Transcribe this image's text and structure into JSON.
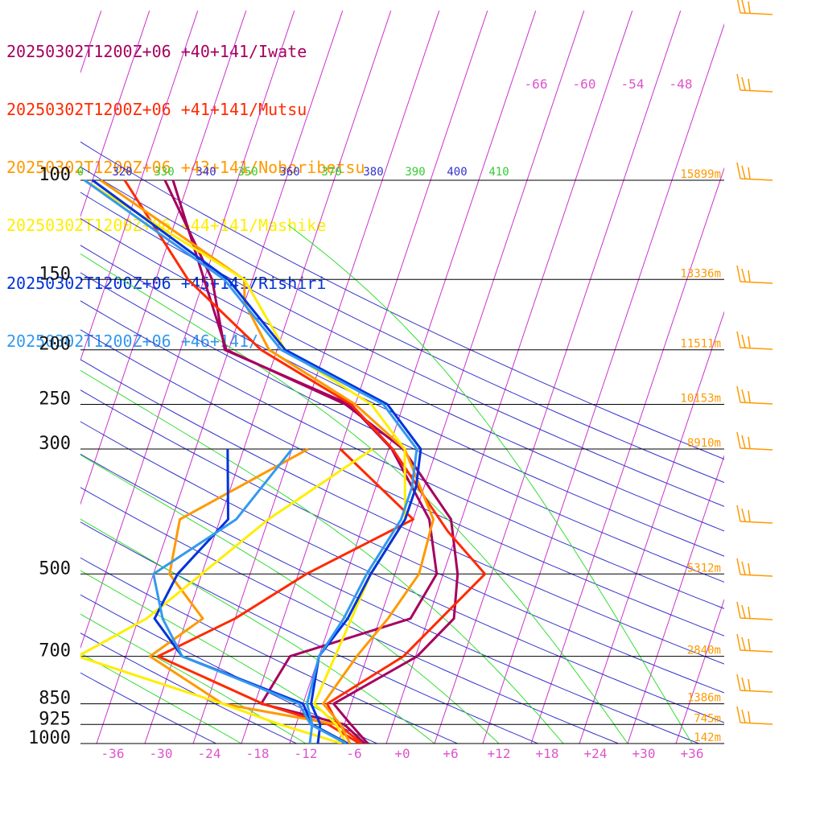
{
  "chart_data": {
    "type": "line",
    "title": "",
    "pressure_levels": [
      100,
      150,
      200,
      250,
      300,
      500,
      700,
      850,
      925,
      1000
    ],
    "pressure_labels": [
      "100",
      "150",
      "200",
      "250",
      "300",
      "500",
      "700",
      "850",
      "925",
      "1000"
    ],
    "height_labels": [
      {
        "p": 100,
        "text": "15899m"
      },
      {
        "p": 150,
        "text": "13336m"
      },
      {
        "p": 200,
        "text": "11511m"
      },
      {
        "p": 250,
        "text": "10153m"
      },
      {
        "p": 300,
        "text": "8910m"
      },
      {
        "p": 500,
        "text": "5312m"
      },
      {
        "p": 700,
        "text": "2840m"
      },
      {
        "p": 850,
        "text": "1386m"
      },
      {
        "p": 925,
        "text": "745m"
      },
      {
        "p": 1000,
        "text": "142m"
      }
    ],
    "temperature_ticks": [
      "-36",
      "-30",
      "-24",
      "-18",
      "-12",
      "-6",
      "+0",
      "+6",
      "+12",
      "+18",
      "+24",
      "+30",
      "+36"
    ],
    "temperature_tick_values": [
      -36,
      -30,
      -24,
      -18,
      -12,
      -6,
      0,
      6,
      12,
      18,
      24,
      30,
      36
    ],
    "upper_temperature_labels": [
      "-66",
      "-60",
      "-54",
      "-48"
    ],
    "theta_labels": [
      "0",
      "320",
      "330",
      "340",
      "350",
      "360",
      "370",
      "380",
      "390",
      "400",
      "410"
    ],
    "xlim": [
      -40,
      40
    ],
    "ylim": [
      1000,
      100
    ],
    "series": [
      {
        "name": "20250302T1200Z+06 +40+141/Iwate",
        "color": "#a6005f",
        "temperature": [
          [
            1000,
            -4.3
          ],
          [
            925,
            -7.2
          ],
          [
            850,
            -10.2
          ],
          [
            700,
            -1.8
          ],
          [
            600,
            1.2
          ],
          [
            500,
            -0.2
          ],
          [
            400,
            -3.3
          ],
          [
            300,
            -12.2
          ],
          [
            250,
            -21.2
          ],
          [
            200,
            -38.3
          ],
          [
            150,
            -44.0
          ],
          [
            100,
            -52.0
          ]
        ],
        "dewpoint": [
          [
            1000,
            -4.7
          ],
          [
            925,
            -8.0
          ],
          [
            850,
            -19.2
          ],
          [
            700,
            -17.6
          ],
          [
            600,
            -4.2
          ],
          [
            500,
            -2.8
          ],
          [
            400,
            -6.0
          ],
          [
            300,
            -13.6
          ],
          [
            250,
            -20.7
          ],
          [
            200,
            -38.5
          ],
          [
            150,
            -43.0
          ],
          [
            100,
            -53.0
          ]
        ]
      },
      {
        "name": "20250302T1200Z+06 +41+141/Mutsu",
        "color": "#ff2a00",
        "temperature": [
          [
            1000,
            -5.0
          ],
          [
            925,
            -8.8
          ],
          [
            850,
            -11.0
          ],
          [
            700,
            -3.5
          ],
          [
            500,
            3.2
          ],
          [
            420,
            -3.2
          ],
          [
            380,
            -6.3
          ],
          [
            300,
            -13.5
          ],
          [
            250,
            -20.5
          ],
          [
            200,
            -34.0
          ],
          [
            150,
            -46.0
          ],
          [
            100,
            -58.0
          ]
        ],
        "dewpoint": [
          [
            1000,
            -5.3
          ],
          [
            925,
            -10.0
          ],
          [
            850,
            -19.0
          ],
          [
            700,
            -34.0
          ],
          [
            600,
            -26.0
          ],
          [
            500,
            -19.0
          ],
          [
            400,
            -8.0
          ],
          [
            300,
            -20.0
          ]
        ]
      },
      {
        "name": "20250302T1200Z+06 +43+141/Noboribetsu",
        "color": "#ff9900",
        "temperature": [
          [
            1000,
            -6.5
          ],
          [
            925,
            -8.5
          ],
          [
            850,
            -11.5
          ],
          [
            700,
            -9.3
          ],
          [
            600,
            -7.0
          ],
          [
            500,
            -5.0
          ],
          [
            400,
            -5.5
          ],
          [
            300,
            -12.0
          ],
          [
            250,
            -20.0
          ],
          [
            200,
            -33.0
          ],
          [
            165,
            -38.0
          ],
          [
            150,
            -39.0
          ],
          [
            100,
            -61.0
          ]
        ],
        "dewpoint": [
          [
            1000,
            -7.0
          ],
          [
            925,
            -9.0
          ],
          [
            850,
            -24.0
          ],
          [
            700,
            -35.0
          ],
          [
            600,
            -30.0
          ],
          [
            500,
            -36.0
          ],
          [
            400,
            -37.0
          ],
          [
            300,
            -24.0
          ]
        ]
      },
      {
        "name": "20250302T1200Z+06 +44+141/Mashike",
        "color": "#ffee00",
        "temperature": [
          [
            1000,
            -7.0
          ],
          [
            925,
            -9.0
          ],
          [
            850,
            -12.6
          ],
          [
            700,
            -12.0
          ],
          [
            500,
            -11.0
          ],
          [
            400,
            -9.0
          ],
          [
            300,
            -12.0
          ],
          [
            250,
            -18.0
          ],
          [
            200,
            -31.0
          ],
          [
            150,
            -39.0
          ],
          [
            100,
            -63.0
          ]
        ],
        "dewpoint": [
          [
            1000,
            -7.5
          ],
          [
            925,
            -16.0
          ],
          [
            850,
            -24.0
          ],
          [
            700,
            -44.0
          ],
          [
            600,
            -37.0
          ],
          [
            500,
            -32.0
          ],
          [
            400,
            -26.0
          ],
          [
            300,
            -16.0
          ]
        ]
      },
      {
        "name": "20250302T1200Z+06 +45+141/Rishiri",
        "color": "#0033dd",
        "temperature": [
          [
            1000,
            -10.5
          ],
          [
            925,
            -11.0
          ],
          [
            850,
            -13.0
          ],
          [
            700,
            -14.0
          ],
          [
            600,
            -12.0
          ],
          [
            500,
            -11.0
          ],
          [
            400,
            -9.0
          ],
          [
            350,
            -9.0
          ],
          [
            300,
            -10.0
          ],
          [
            250,
            -16.0
          ],
          [
            200,
            -31.0
          ],
          [
            150,
            -41.0
          ],
          [
            100,
            -62.0
          ]
        ],
        "dewpoint": [
          [
            1000,
            -6.8
          ],
          [
            925,
            -12.0
          ],
          [
            850,
            -14.0
          ],
          [
            700,
            -31.0
          ],
          [
            600,
            -36.0
          ],
          [
            500,
            -35.0
          ],
          [
            400,
            -31.0
          ],
          [
            300,
            -34.0
          ]
        ]
      },
      {
        "name": "20250302T1200Z+06 +46+141/",
        "color": "#3399ee",
        "temperature": [
          [
            1000,
            -11.5
          ],
          [
            925,
            -12.0
          ],
          [
            850,
            -13.5
          ],
          [
            700,
            -14.0
          ],
          [
            600,
            -12.5
          ],
          [
            500,
            -11.5
          ],
          [
            400,
            -9.5
          ],
          [
            350,
            -9.5
          ],
          [
            300,
            -10.5
          ],
          [
            250,
            -16.5
          ],
          [
            200,
            -31.5
          ],
          [
            150,
            -41.5
          ],
          [
            100,
            -63.0
          ]
        ],
        "dewpoint": [
          [
            1000,
            -7.0
          ],
          [
            925,
            -12.2
          ],
          [
            850,
            -14.5
          ],
          [
            700,
            -31.0
          ],
          [
            600,
            -35.0
          ],
          [
            500,
            -38.0
          ],
          [
            400,
            -30.0
          ],
          [
            300,
            -26.0
          ]
        ]
      }
    ],
    "legend_placement": "top-left",
    "grid": true,
    "colors": {
      "isobar": "#000000",
      "isotherm": "#cc33cc",
      "dry_adiabat": "#3333cc",
      "moist_adiabat": "#33dd33",
      "labels": "#dd55cc",
      "height_label": "#ff9900",
      "wind_barb": "#ff9900",
      "pressure_label": "#111111"
    }
  }
}
